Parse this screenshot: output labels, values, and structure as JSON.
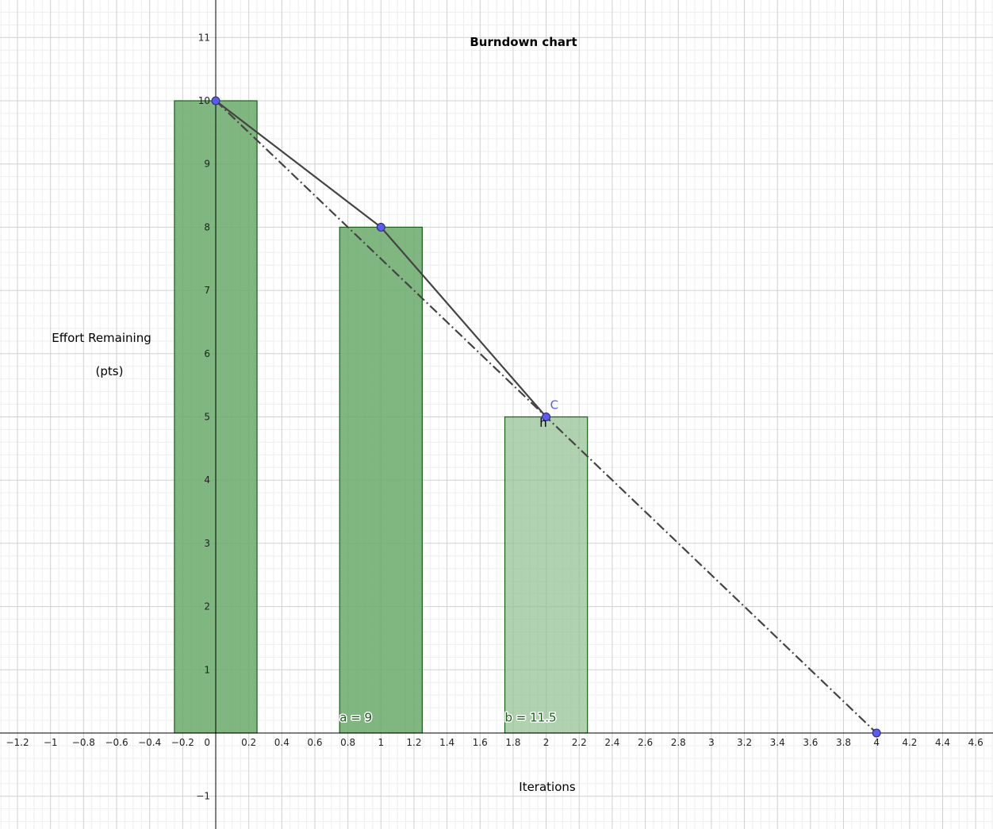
{
  "chart_data": {
    "type": "bar",
    "title": "Burndown chart",
    "xlabel": "Iterations",
    "ylabel_lines": [
      "Effort Remaining",
      "(pts)"
    ],
    "xlim": [
      -1.3,
      4.72
    ],
    "ylim": [
      -1.5,
      11.6
    ],
    "grid": true,
    "minor_grid": true,
    "x_ticks": [
      "-1.2",
      "-1",
      "-0.8",
      "-0.6",
      "-0.4",
      "-0.2",
      "0.2",
      "0.4",
      "0.6",
      "0.8",
      "1",
      "1.2",
      "1.4",
      "1.6",
      "1.8",
      "2",
      "2.2",
      "2.4",
      "2.6",
      "2.8",
      "3",
      "3.2",
      "3.4",
      "3.6",
      "3.8",
      "4",
      "4.2",
      "4.4",
      "4.6"
    ],
    "x_tick_values": [
      -1.2,
      -1,
      -0.8,
      -0.6,
      -0.4,
      -0.2,
      0.2,
      0.4,
      0.6,
      0.8,
      1,
      1.2,
      1.4,
      1.6,
      1.8,
      2,
      2.2,
      2.4,
      2.6,
      2.8,
      3,
      3.2,
      3.4,
      3.6,
      3.8,
      4,
      4.2,
      4.4,
      4.6
    ],
    "y_ticks": [
      "-1",
      "1",
      "2",
      "3",
      "4",
      "5",
      "6",
      "7",
      "8",
      "9",
      "10",
      "11"
    ],
    "y_tick_values": [
      -1,
      1,
      2,
      3,
      4,
      5,
      6,
      7,
      8,
      9,
      10,
      11
    ],
    "origin_label": "0",
    "bars": [
      {
        "x": 0,
        "value": 10,
        "width": 0.5,
        "fill": "#6aa96a",
        "opacity": 0.85
      },
      {
        "x": 1,
        "value": 8,
        "width": 0.5,
        "fill": "#6aa96a",
        "opacity": 0.85
      },
      {
        "x": 2,
        "value": 5,
        "width": 0.5,
        "fill": "#8fbf8f",
        "opacity": 0.7
      }
    ],
    "bar_stroke": "#1a5e1a",
    "actual_line": [
      [
        0,
        10
      ],
      [
        1,
        8
      ],
      [
        2,
        5
      ]
    ],
    "ideal_line": [
      [
        0,
        10
      ],
      [
        4,
        0
      ]
    ],
    "points": [
      {
        "x": 0,
        "y": 10,
        "label": ""
      },
      {
        "x": 1,
        "y": 8,
        "label": ""
      },
      {
        "x": 2,
        "y": 5,
        "label": "C"
      },
      {
        "x": 4,
        "y": 0,
        "label": ""
      }
    ],
    "point_color": "#5b5bf0",
    "label_h": {
      "text": "h",
      "x": 1.96,
      "y": 4.92
    },
    "bar_labels": [
      {
        "text": "a = 9",
        "x": 0.75,
        "y": 0.18
      },
      {
        "text": "b = 11.5",
        "x": 1.75,
        "y": 0.18
      }
    ]
  }
}
